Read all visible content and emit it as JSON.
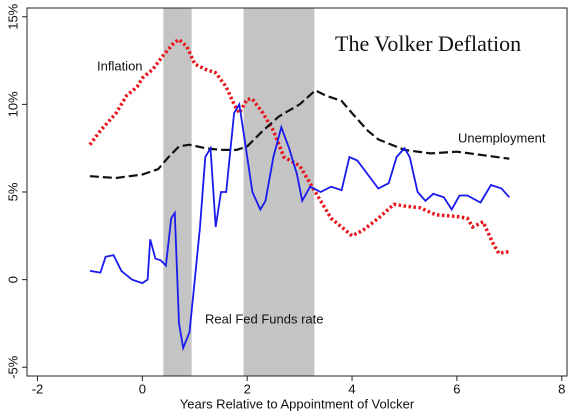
{
  "chart_data": {
    "type": "line",
    "title": "The Volker Deflation",
    "x_label": "Years Relative to Appointment of Volcker",
    "xlim": [
      -2.2,
      8.1
    ],
    "xticks": [
      -2,
      0,
      2,
      4,
      6,
      8
    ],
    "ylim": [
      -5.5,
      15.5
    ],
    "yticks": [
      {
        "value": -5,
        "label": "-5%"
      },
      0,
      {
        "value": 5,
        "label": "5%"
      },
      {
        "value": 10,
        "label": "10%"
      },
      {
        "value": 15,
        "label": "15%"
      }
    ],
    "shaded_spans": [
      [
        0.4,
        0.94
      ],
      [
        1.93,
        3.28
      ]
    ],
    "shade_color": "#c4c4c4",
    "annotations": [
      "Inflation",
      "Unemployment",
      "Real Fed Funds rate"
    ],
    "series": [
      {
        "name": "Inflation",
        "color": "#e8141b",
        "style": "dotted",
        "x": [
          -1,
          -0.8,
          -0.5,
          -0.3,
          -0.1,
          0,
          0.2,
          0.4,
          0.6,
          0.7,
          0.85,
          1.0,
          1.2,
          1.4,
          1.6,
          1.75,
          1.85,
          2.0,
          2.1,
          2.3,
          2.5,
          2.7,
          3.0,
          3.2,
          3.4,
          3.6,
          3.8,
          4.0,
          4.2,
          4.5,
          4.8,
          5.0,
          5.3,
          5.6,
          6.0,
          6.2,
          6.3,
          6.5,
          6.7,
          6.8,
          7.0
        ],
        "values": [
          7.7,
          8.5,
          9.5,
          10.5,
          11,
          11.5,
          12,
          12.8,
          13.5,
          13.7,
          13.3,
          12.3,
          12,
          11.8,
          11,
          10,
          9.5,
          10.3,
          10.3,
          9.5,
          8.5,
          7,
          6.5,
          5.5,
          4.5,
          3.5,
          3,
          2.5,
          2.8,
          3.5,
          4.3,
          4.2,
          4.1,
          3.7,
          3.6,
          3.5,
          3,
          3.3,
          2,
          1.5,
          1.6
        ]
      },
      {
        "name": "Unemployment",
        "color": "#111111",
        "style": "dashed",
        "x": [
          -1,
          -0.5,
          0,
          0.3,
          0.5,
          0.7,
          0.9,
          1.2,
          1.5,
          1.8,
          2.0,
          2.3,
          2.6,
          3.0,
          3.3,
          3.5,
          3.8,
          4.0,
          4.3,
          4.5,
          5.0,
          5.5,
          6.0,
          6.5,
          7.0
        ],
        "values": [
          5.9,
          5.8,
          6.0,
          6.3,
          7.0,
          7.6,
          7.7,
          7.5,
          7.4,
          7.4,
          7.6,
          8.5,
          9.3,
          10.0,
          10.8,
          10.5,
          10.2,
          9.5,
          8.5,
          8.0,
          7.4,
          7.2,
          7.3,
          7.1,
          6.9
        ]
      },
      {
        "name": "Real Fed Funds rate",
        "color": "#1a1aee",
        "style": "solid",
        "x": [
          -1,
          -0.8,
          -0.7,
          -0.55,
          -0.4,
          -0.2,
          0,
          0.1,
          0.15,
          0.25,
          0.35,
          0.45,
          0.55,
          0.62,
          0.7,
          0.78,
          0.9,
          1.0,
          1.1,
          1.2,
          1.3,
          1.4,
          1.5,
          1.6,
          1.75,
          1.85,
          1.95,
          2.1,
          2.25,
          2.35,
          2.5,
          2.65,
          2.8,
          2.95,
          3.05,
          3.2,
          3.4,
          3.6,
          3.8,
          3.95,
          4.1,
          4.3,
          4.5,
          4.7,
          4.85,
          5.0,
          5.1,
          5.25,
          5.4,
          5.55,
          5.75,
          5.9,
          6.05,
          6.2,
          6.45,
          6.65,
          6.85,
          7.0
        ],
        "values": [
          0.5,
          0.4,
          1.3,
          1.4,
          0.5,
          0,
          -0.2,
          0,
          2.3,
          1.2,
          1.1,
          0.8,
          3.5,
          3.8,
          -2.5,
          -3.9,
          -3,
          0,
          3,
          7,
          7.5,
          3,
          5,
          5,
          9.5,
          10.0,
          8,
          5,
          4,
          4.5,
          7,
          8.7,
          7.5,
          6,
          4.5,
          5.3,
          5.0,
          5.3,
          5.1,
          7,
          6.8,
          6,
          5.2,
          5.5,
          7.0,
          7.5,
          7,
          5,
          4.5,
          4.9,
          4.7,
          4,
          4.8,
          4.8,
          4.4,
          5.4,
          5.2,
          4.7
        ]
      }
    ]
  }
}
